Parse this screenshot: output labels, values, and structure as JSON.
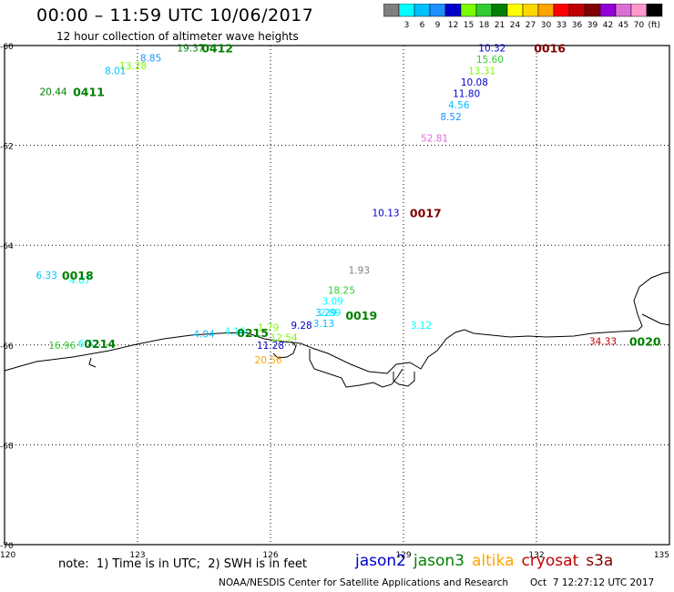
{
  "header": {
    "title": "00:00 – 11:59 UTC 10/06/2017",
    "subtitle": "12 hour collection of altimeter wave heights"
  },
  "colorbar": {
    "unit": "(ft)",
    "swatches": [
      {
        "color": "#808080",
        "label": ""
      },
      {
        "color": "#00ffff",
        "label": "3"
      },
      {
        "color": "#00bfff",
        "label": "6"
      },
      {
        "color": "#1e90ff",
        "label": "9"
      },
      {
        "color": "#0000cd",
        "label": "12"
      },
      {
        "color": "#7cfc00",
        "label": "15"
      },
      {
        "color": "#32cd32",
        "label": "18"
      },
      {
        "color": "#008000",
        "label": "21"
      },
      {
        "color": "#ffff00",
        "label": "24"
      },
      {
        "color": "#ffd700",
        "label": "27"
      },
      {
        "color": "#ffa500",
        "label": "30"
      },
      {
        "color": "#ff0000",
        "label": "33"
      },
      {
        "color": "#c00000",
        "label": "36"
      },
      {
        "color": "#800000",
        "label": "39"
      },
      {
        "color": "#9400d3",
        "label": "42"
      },
      {
        "color": "#da70d6",
        "label": "45"
      },
      {
        "color": "#ff99cc",
        "label": "70"
      },
      {
        "color": "#000000",
        "label": ""
      }
    ]
  },
  "chart_data": {
    "type": "scatter",
    "projection": "lat-lon map",
    "xlim": [
      120,
      135
    ],
    "ylim": [
      -70,
      -60
    ],
    "lon_ticks": [
      {
        "value": 120,
        "label": "120"
      },
      {
        "value": 123,
        "label": "123"
      },
      {
        "value": 126,
        "label": "126"
      },
      {
        "value": 129,
        "label": "129"
      },
      {
        "value": 132,
        "label": "132"
      },
      {
        "value": 135,
        "label": "135"
      }
    ],
    "lat_ticks": [
      {
        "value": -60,
        "label": "-60"
      },
      {
        "value": -62,
        "label": "-62"
      },
      {
        "value": -64,
        "label": "-64"
      },
      {
        "value": -66,
        "label": "-66"
      },
      {
        "value": -68,
        "label": "-68"
      },
      {
        "value": -70,
        "label": "-70"
      }
    ],
    "grid": "dotted",
    "wave_heights": [
      {
        "text": "10.32",
        "lon": 131.0,
        "lat": -60.05,
        "color": "#0000cd"
      },
      {
        "text": "15.60",
        "lon": 130.95,
        "lat": -60.27,
        "color": "#32cd32"
      },
      {
        "text": "13.31",
        "lon": 130.77,
        "lat": -60.5,
        "color": "#7cfc00"
      },
      {
        "text": "10.08",
        "lon": 130.6,
        "lat": -60.73,
        "color": "#0000cd"
      },
      {
        "text": "11.80",
        "lon": 130.42,
        "lat": -60.96,
        "color": "#0000cd"
      },
      {
        "text": "4.56",
        "lon": 130.25,
        "lat": -61.19,
        "color": "#00bfff"
      },
      {
        "text": "8.52",
        "lon": 130.07,
        "lat": -61.42,
        "color": "#1e90ff"
      },
      {
        "text": "52.81",
        "lon": 129.7,
        "lat": -61.85,
        "color": "#da70d6"
      },
      {
        "text": "10.13",
        "lon": 128.6,
        "lat": -63.35,
        "color": "#0000cd"
      },
      {
        "text": "19.37",
        "lon": 124.2,
        "lat": -60.05,
        "color": "#008000"
      },
      {
        "text": "8.85",
        "lon": 123.3,
        "lat": -60.25,
        "color": "#1e90ff"
      },
      {
        "text": "13.28",
        "lon": 122.9,
        "lat": -60.4,
        "color": "#7cfc00"
      },
      {
        "text": "8.01",
        "lon": 122.5,
        "lat": -60.5,
        "color": "#00bfff"
      },
      {
        "text": "20.44",
        "lon": 121.1,
        "lat": -60.92,
        "color": "#008000"
      },
      {
        "text": "6.33",
        "lon": 120.95,
        "lat": -64.6,
        "color": "#00bfff"
      },
      {
        "text": "4.67",
        "lon": 121.7,
        "lat": -64.7,
        "color": "#00ffff"
      },
      {
        "text": "1.93",
        "lon": 128.0,
        "lat": -64.5,
        "color": "#808080"
      },
      {
        "text": "18.25",
        "lon": 127.6,
        "lat": -64.9,
        "color": "#32cd32"
      },
      {
        "text": "3.09",
        "lon": 127.4,
        "lat": -65.12,
        "color": "#00ffff"
      },
      {
        "text": "3.29",
        "lon": 127.25,
        "lat": -65.35,
        "color": "#00bfff"
      },
      {
        "text": "2.89",
        "lon": 127.35,
        "lat": -65.35,
        "color": "#00ffff"
      },
      {
        "text": "3.13",
        "lon": 127.2,
        "lat": -65.57,
        "color": "#00bfff"
      },
      {
        "text": "9.28",
        "lon": 126.7,
        "lat": -65.6,
        "color": "#0000cd"
      },
      {
        "text": "3.12",
        "lon": 129.4,
        "lat": -65.6,
        "color": "#00ffff"
      },
      {
        "text": "4.04",
        "lon": 124.5,
        "lat": -65.78,
        "color": "#00bfff"
      },
      {
        "text": "4.16",
        "lon": 125.2,
        "lat": -65.72,
        "color": "#00ffff"
      },
      {
        "text": "1.79",
        "lon": 125.95,
        "lat": -65.65,
        "color": "#7cfc00"
      },
      {
        "text": "12.54",
        "lon": 126.3,
        "lat": -65.85,
        "color": "#7cfc00"
      },
      {
        "text": "11.28",
        "lon": 126.0,
        "lat": -66.0,
        "color": "#0000cd"
      },
      {
        "text": "20.56",
        "lon": 125.95,
        "lat": -66.3,
        "color": "#ffa500"
      },
      {
        "text": "16.96",
        "lon": 121.3,
        "lat": -66.0,
        "color": "#32cd32"
      },
      {
        "text": "6.52",
        "lon": 121.9,
        "lat": -65.97,
        "color": "#00ffff"
      },
      {
        "text": "34.33",
        "lon": 133.5,
        "lat": -65.92,
        "color": "#c00000"
      }
    ],
    "time_labels": [
      {
        "text": "0016",
        "lon": 132.3,
        "lat": -60.05,
        "color": "#800000"
      },
      {
        "text": "0412",
        "lon": 124.8,
        "lat": -60.05,
        "color": "#008000"
      },
      {
        "text": "0411",
        "lon": 121.9,
        "lat": -60.92,
        "color": "#008000"
      },
      {
        "text": "0017",
        "lon": 129.5,
        "lat": -63.35,
        "color": "#800000"
      },
      {
        "text": "0018",
        "lon": 121.65,
        "lat": -64.6,
        "color": "#008000"
      },
      {
        "text": "0019",
        "lon": 128.05,
        "lat": -65.4,
        "color": "#008000"
      },
      {
        "text": "0214",
        "lon": 122.15,
        "lat": -65.97,
        "color": "#008000"
      },
      {
        "text": "0215",
        "lon": 125.6,
        "lat": -65.75,
        "color": "#008000"
      },
      {
        "text": "0020",
        "lon": 134.45,
        "lat": -65.92,
        "color": "#008000"
      }
    ]
  },
  "footer": {
    "note": "note:  1) Time is in UTC;  2) SWH is in feet",
    "satellites": [
      {
        "name": "jason2",
        "color": "#0000cd"
      },
      {
        "name": "jason3",
        "color": "#008000"
      },
      {
        "name": "altika",
        "color": "#ffa500"
      },
      {
        "name": "cryosat",
        "color": "#c00000"
      },
      {
        "name": "s3a",
        "color": "#800000"
      }
    ],
    "credit": "NOAA/NESDIS Center for Satellite Applications and Research",
    "timestamp": "Oct  7 12:27:12 UTC 2017"
  }
}
